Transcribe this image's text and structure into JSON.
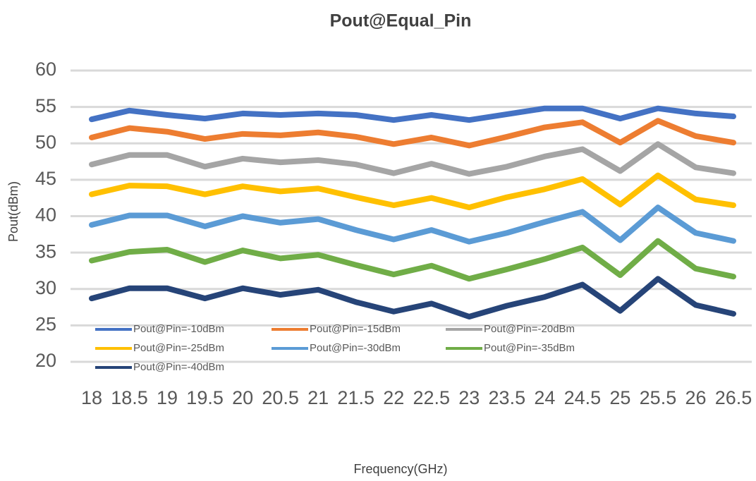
{
  "chart_data": {
    "type": "line",
    "title": "Pout@Equal_Pin",
    "x_label": "Frequency(GHz)",
    "y_label": "Pout(dBm)",
    "categories": [
      "18",
      "18.5",
      "19",
      "19.5",
      "20",
      "20.5",
      "21",
      "21.5",
      "22",
      "22.5",
      "23",
      "23.5",
      "24",
      "24.5",
      "25",
      "25.5",
      "26",
      "26.5"
    ],
    "ylim": [
      20,
      60
    ],
    "yticks": [
      20,
      25,
      30,
      35,
      40,
      45,
      50,
      55,
      60
    ],
    "grid": true,
    "legend": "lower left",
    "series": [
      {
        "name": "Pout@Pin=-10dBm",
        "color": "#4472c4",
        "values": [
          53.3,
          54.5,
          53.9,
          53.4,
          54.1,
          53.9,
          54.1,
          53.9,
          53.2,
          53.9,
          53.2,
          54.0,
          54.8,
          54.8,
          53.4,
          54.8,
          54.1,
          53.7
        ]
      },
      {
        "name": "Pout@Pin=-15dBm",
        "color": "#ed7d31",
        "values": [
          50.8,
          52.1,
          51.6,
          50.6,
          51.3,
          51.1,
          51.5,
          50.9,
          49.9,
          50.8,
          49.7,
          50.9,
          52.2,
          52.9,
          50.1,
          53.1,
          51.0,
          50.1
        ]
      },
      {
        "name": "Pout@Pin=-20dBm",
        "color": "#a5a5a5",
        "values": [
          47.1,
          48.4,
          48.4,
          46.8,
          47.9,
          47.4,
          47.7,
          47.1,
          45.9,
          47.2,
          45.8,
          46.8,
          48.2,
          49.2,
          46.2,
          49.9,
          46.7,
          45.9
        ]
      },
      {
        "name": "Pout@Pin=-25dBm",
        "color": "#ffc000",
        "values": [
          43.0,
          44.2,
          44.1,
          43.0,
          44.1,
          43.4,
          43.8,
          42.6,
          41.5,
          42.5,
          41.2,
          42.6,
          43.7,
          45.1,
          41.6,
          45.6,
          42.3,
          41.5
        ]
      },
      {
        "name": "Pout@Pin=-30dBm",
        "color": "#5b9bd5",
        "values": [
          38.8,
          40.1,
          40.1,
          38.6,
          40.0,
          39.1,
          39.6,
          38.1,
          36.8,
          38.1,
          36.5,
          37.7,
          39.2,
          40.6,
          36.7,
          41.2,
          37.7,
          36.6
        ]
      },
      {
        "name": "Pout@Pin=-35dBm",
        "color": "#70ad47",
        "values": [
          33.9,
          35.1,
          35.4,
          33.7,
          35.3,
          34.2,
          34.7,
          33.3,
          32.0,
          33.2,
          31.4,
          32.7,
          34.1,
          35.7,
          31.9,
          36.6,
          32.8,
          31.7
        ]
      },
      {
        "name": "Pout@Pin=-40dBm",
        "color": "#264478",
        "values": [
          28.7,
          30.1,
          30.1,
          28.7,
          30.1,
          29.2,
          29.9,
          28.2,
          26.9,
          28.0,
          26.2,
          27.7,
          28.9,
          30.6,
          27.0,
          31.4,
          27.8,
          26.6
        ]
      }
    ]
  }
}
